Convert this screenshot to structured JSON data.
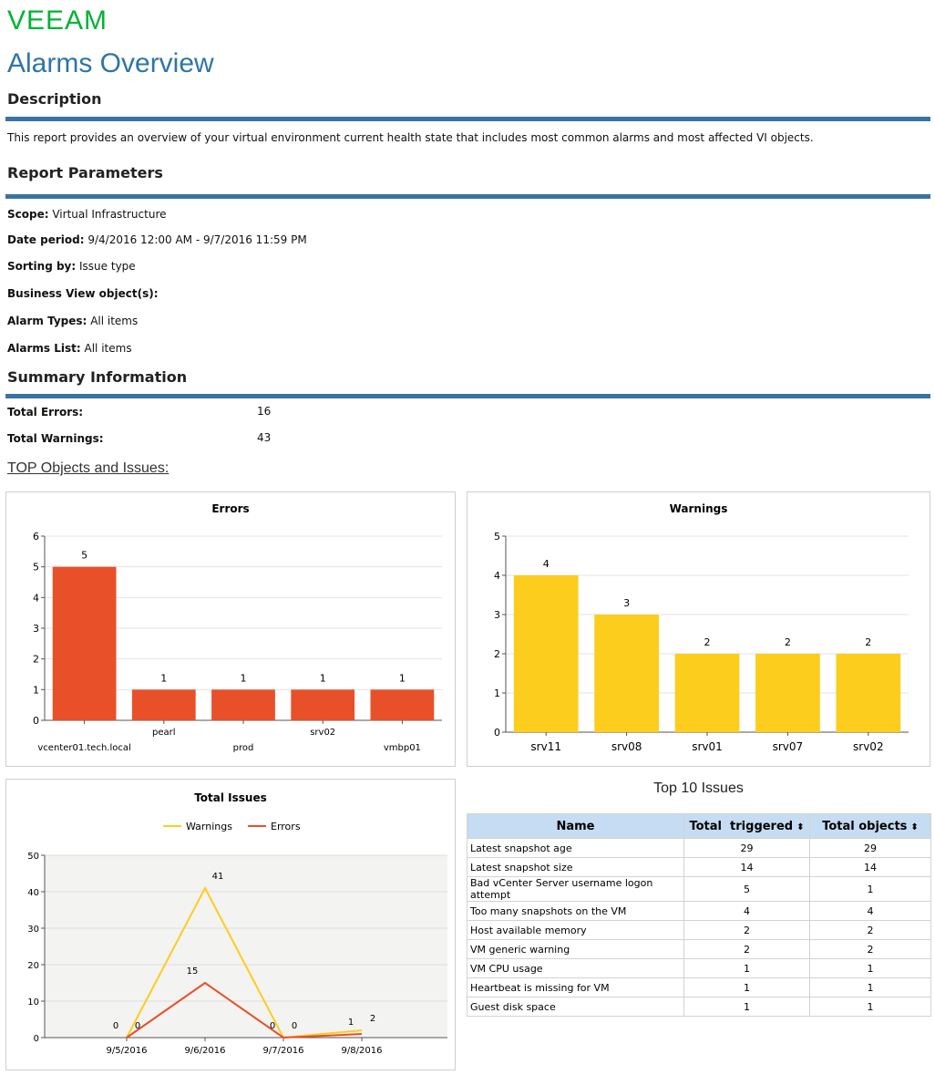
{
  "brand": {
    "logo": "VEEAM",
    "color": "#00b336"
  },
  "report_title": "Alarms Overview",
  "description": {
    "heading": "Description",
    "text": "This report provides an overview of your virtual environment current health state that includes most common alarms and most affected VI objects."
  },
  "parameters": {
    "heading": "Report Parameters",
    "items": [
      {
        "label": "Scope:",
        "value": "Virtual Infrastructure"
      },
      {
        "label": "Date period:",
        "value": "9/4/2016 12:00 AM - 9/7/2016 11:59 PM"
      },
      {
        "label": "Sorting by:",
        "value": "Issue type"
      },
      {
        "label": "Business View object(s):",
        "value": ""
      },
      {
        "label": "Alarm Types:",
        "value": "All items"
      },
      {
        "label": "Alarms List:",
        "value": "All items"
      }
    ]
  },
  "summary": {
    "heading": "Summary Information",
    "total_errors_label": "Total Errors:",
    "total_errors": "16",
    "total_warnings_label": "Total Warnings:",
    "total_warnings": "43"
  },
  "top_link": "TOP Objects and Issues:",
  "colors": {
    "accent": "#3a73a3",
    "error": "#e8502a",
    "warning": "#fdcd1d"
  },
  "chart_data": [
    {
      "type": "bar",
      "title": "Errors",
      "categories": [
        "vcenter01.tech.local",
        "pearl",
        "prod",
        "srv02",
        "vmbp01"
      ],
      "values": [
        5,
        1,
        1,
        1,
        1
      ],
      "ylim": [
        0,
        6
      ],
      "yticks": [
        0,
        1,
        2,
        3,
        4,
        5,
        6
      ],
      "grid": true
    },
    {
      "type": "bar",
      "title": "Warnings",
      "categories": [
        "srv11",
        "srv08",
        "srv01",
        "srv07",
        "srv02"
      ],
      "values": [
        4,
        3,
        2,
        2,
        2
      ],
      "ylim": [
        0,
        5
      ],
      "yticks": [
        0,
        1,
        2,
        3,
        4,
        5
      ],
      "grid": true
    },
    {
      "type": "line",
      "title": "Total Issues",
      "legend": "top",
      "categories": [
        "9/5/2016",
        "9/6/2016",
        "9/7/2016",
        "9/8/2016"
      ],
      "series": [
        {
          "name": "Warnings",
          "values": [
            0,
            41,
            0,
            2
          ]
        },
        {
          "name": "Errors",
          "values": [
            0,
            15,
            0,
            1
          ]
        }
      ],
      "ylim": [
        0,
        50
      ],
      "yticks": [
        0,
        10,
        20,
        30,
        40,
        50
      ],
      "grid": true
    }
  ],
  "top10": {
    "title": "Top 10 Issues",
    "columns": [
      "Name",
      "Total  triggered",
      "Total objects"
    ],
    "rows": [
      [
        "Latest snapshot age",
        "29",
        "29"
      ],
      [
        "Latest snapshot size",
        "14",
        "14"
      ],
      [
        "Bad vCenter Server username logon attempt",
        "5",
        "1"
      ],
      [
        "Too many snapshots on the VM",
        "4",
        "4"
      ],
      [
        "Host available memory",
        "2",
        "2"
      ],
      [
        "VM generic warning",
        "2",
        "2"
      ],
      [
        "VM CPU usage",
        "1",
        "1"
      ],
      [
        "Heartbeat is missing for VM",
        "1",
        "1"
      ],
      [
        "Guest disk space",
        "1",
        "1"
      ]
    ]
  }
}
